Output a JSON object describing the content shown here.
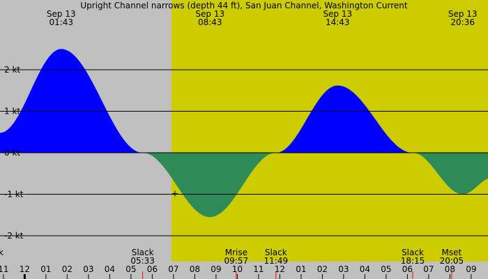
{
  "chart_data": {
    "type": "area",
    "title": "Upright Channel narrows (depth 44 ft), San Juan Channel, Washington Current",
    "unit": "kt",
    "y_ticks": [
      {
        "value": 2,
        "label": "2 kt"
      },
      {
        "value": 1,
        "label": "1 kt"
      },
      {
        "value": 0,
        "label": "0 kt"
      },
      {
        "value": -1,
        "label": "-1 kt"
      },
      {
        "value": -2,
        "label": "-2 kt"
      }
    ],
    "ylim": [
      -2.3,
      3.4
    ],
    "xlim_hours": [
      -1.16,
      33.0
    ],
    "grid": true,
    "night_spans_hours": [
      [
        -1.16,
        6.9
      ],
      [
        26.85,
        33.0
      ]
    ],
    "day_span_hours": [
      6.9,
      26.85
    ],
    "top_events": [
      {
        "date": "Sep 13",
        "time": "01:43",
        "hour": 1.717,
        "value": 2.5
      },
      {
        "date": "Sep 13",
        "time": "08:43",
        "hour": 8.717,
        "value": -1.55
      },
      {
        "date": "Sep 13",
        "time": "14:43",
        "hour": 14.717,
        "value": 1.62
      },
      {
        "date": "Sep 13",
        "time": "20:36",
        "hour": 20.6,
        "value": -1.0
      }
    ],
    "slack_events": [
      {
        "label": "Slack",
        "time": "05:33",
        "hour": 5.55
      },
      {
        "label": "Slack",
        "time": "11:49",
        "hour": 11.817
      },
      {
        "label": "Slack",
        "time": "18:15",
        "hour": 18.25
      }
    ],
    "moon_events": [
      {
        "label": "Mrise",
        "time": "09:57",
        "hour": 9.95
      },
      {
        "label": "Mset",
        "time": "20:05",
        "hour": 20.083
      }
    ],
    "curve_points": [
      {
        "hour": -1.16,
        "value": 0.48
      },
      {
        "hour": 1.717,
        "value": 2.5
      },
      {
        "hour": 5.55,
        "value": 0.0
      },
      {
        "hour": 8.717,
        "value": -1.55
      },
      {
        "hour": 11.817,
        "value": 0.0
      },
      {
        "hour": 14.717,
        "value": 1.62
      },
      {
        "hour": 18.25,
        "value": 0.0
      },
      {
        "hour": 20.6,
        "value": -1.0
      },
      {
        "hour": 22.0,
        "value": -0.6
      }
    ],
    "marker": {
      "symbol": "+",
      "hour": 7.0,
      "value": -0.97
    },
    "x_tick_labels": [
      "11",
      "12",
      "01",
      "02",
      "03",
      "04",
      "05",
      "06",
      "07",
      "08",
      "09",
      "10",
      "11",
      "12",
      "01",
      "02",
      "03",
      "04",
      "05",
      "06",
      "07",
      "08",
      "09"
    ],
    "x_tick_start_hour": -1,
    "left_edge_text": "k",
    "colors": {
      "night": "#c0c0c0",
      "day": "#cccc00",
      "flood": "#0000ff",
      "ebb": "#2e8b57",
      "grid": "#000000",
      "event_tick": "#ff0000",
      "midnight_tick": "#000000"
    }
  }
}
